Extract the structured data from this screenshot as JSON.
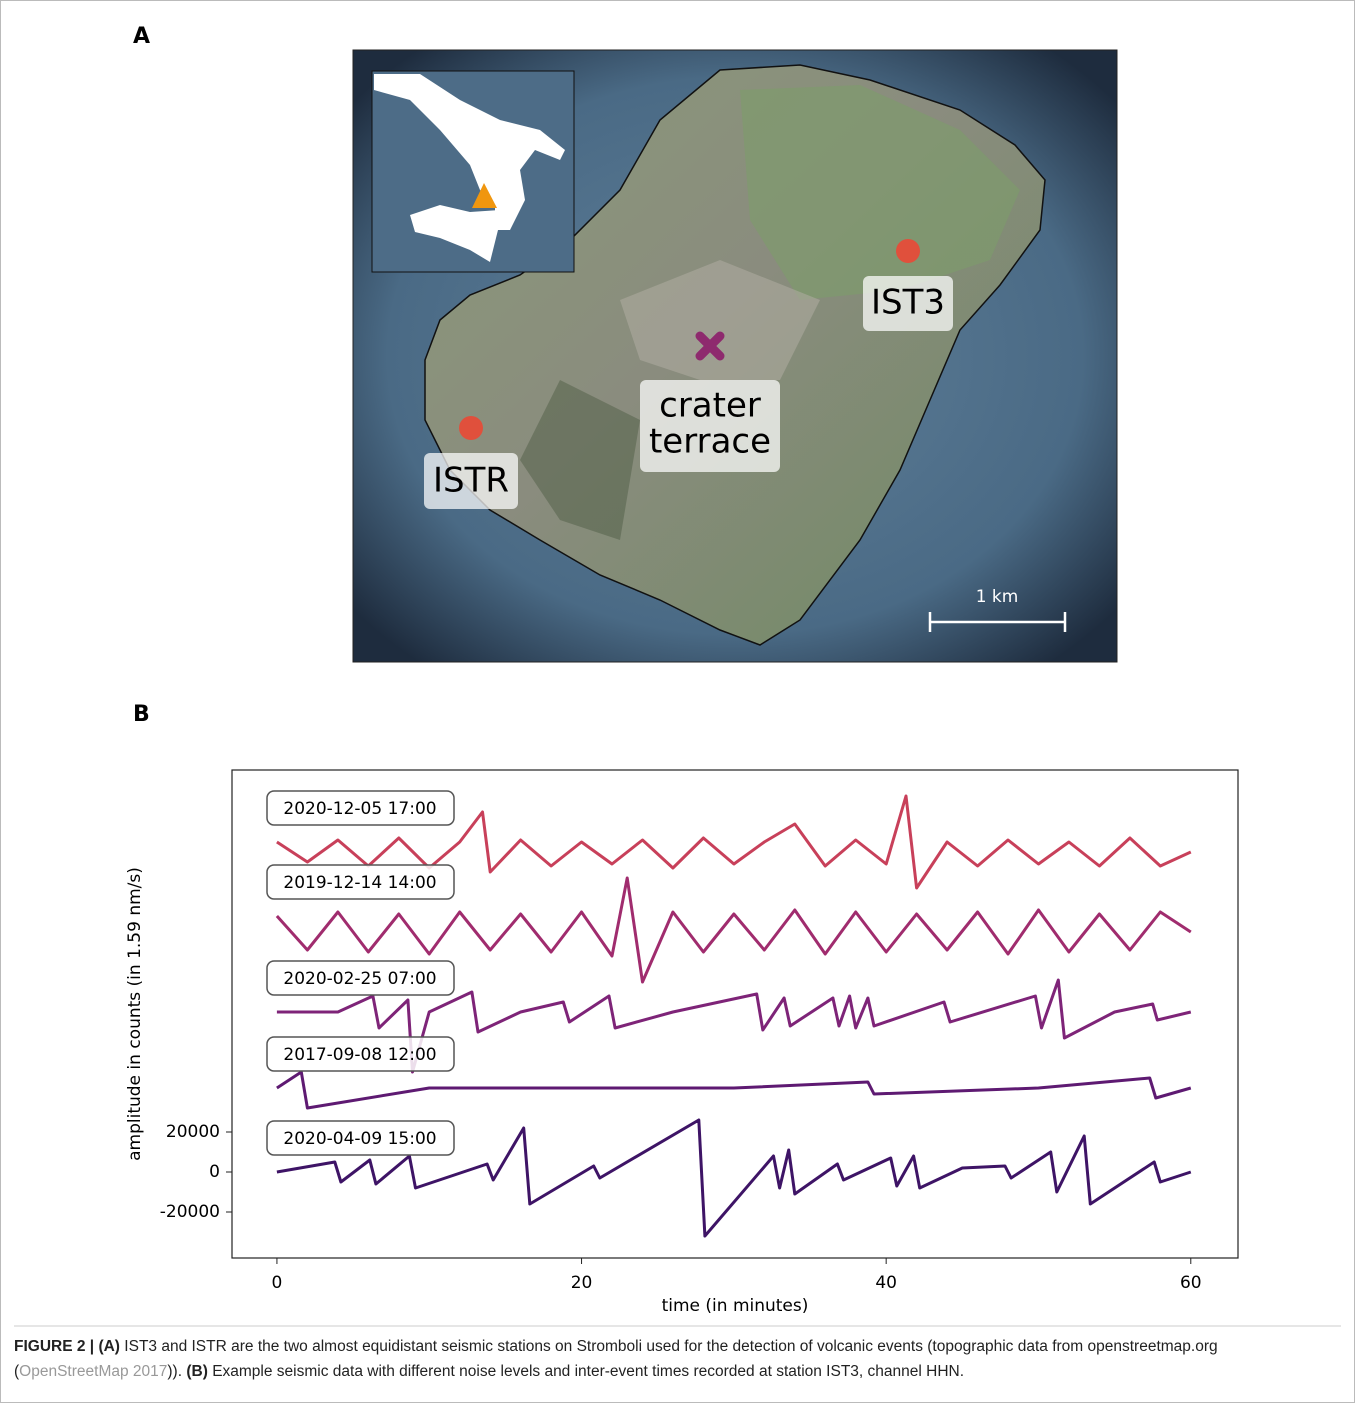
{
  "panel_a": {
    "label": "A",
    "stations": [
      {
        "name": "IST3"
      },
      {
        "name": "ISTR"
      }
    ],
    "crater_lines": [
      "crater",
      "terrace"
    ],
    "scale": "1 km"
  },
  "panel_b": {
    "label": "B"
  },
  "chart_data": {
    "type": "line",
    "xlabel": "time (in minutes)",
    "ylabel": "amplitude in counts (in 1.59 nm/s)",
    "xlim": [
      -2.95,
      63.1
    ],
    "xticks": [
      0,
      20,
      40,
      60
    ],
    "ylim": [
      -43000,
      201000
    ],
    "yticks": [
      -20000,
      0,
      20000
    ],
    "series": [
      {
        "name": "2020-12-05 17:00",
        "color": "#c8405a",
        "x": [
          0,
          2,
          4,
          6,
          8,
          10,
          12,
          13.5,
          14,
          16,
          18,
          20,
          22,
          24,
          26,
          28,
          30,
          32,
          34,
          36,
          38,
          40,
          41.3,
          42,
          44,
          46,
          48,
          50,
          52,
          54,
          56,
          58,
          60
        ],
        "values": [
          165000,
          155000,
          166000,
          153000,
          167000,
          152000,
          165000,
          180000,
          150000,
          166000,
          153000,
          165000,
          154000,
          166000,
          152000,
          167000,
          154000,
          165000,
          174000,
          153000,
          166000,
          154000,
          188000,
          142000,
          165000,
          153000,
          166000,
          154000,
          165000,
          153000,
          167000,
          153000,
          160000
        ]
      },
      {
        "name": "2019-12-14 14:00",
        "color": "#a02c6e",
        "x": [
          0,
          2,
          4,
          6,
          8,
          10,
          12,
          14,
          16,
          18,
          20,
          22,
          23,
          24,
          26,
          28,
          30,
          32,
          34,
          36,
          38,
          40,
          42,
          44,
          46,
          48,
          50,
          52,
          54,
          56,
          58,
          60
        ],
        "values": [
          128000,
          111000,
          130000,
          110000,
          129000,
          109000,
          130000,
          111000,
          129000,
          110000,
          130000,
          108000,
          147000,
          95000,
          130000,
          110000,
          129000,
          111000,
          131000,
          109000,
          130000,
          110000,
          129000,
          111000,
          130000,
          109000,
          131000,
          110000,
          129000,
          111000,
          130000,
          120000
        ]
      },
      {
        "name": "2020-02-25 07:00",
        "color": "#7e2478",
        "x": [
          0,
          4,
          6.3,
          6.7,
          8.6,
          8.9,
          10,
          12.8,
          13.2,
          16,
          18.8,
          19.2,
          21.8,
          22.2,
          26,
          31.5,
          31.9,
          33.3,
          33.7,
          36.5,
          36.9,
          37.6,
          38,
          38.8,
          39.2,
          43.8,
          44.2,
          49.8,
          50.2,
          51.3,
          51.7,
          55,
          57.5,
          57.8,
          60
        ],
        "values": [
          80000,
          80000,
          88000,
          72000,
          86000,
          50000,
          80000,
          90000,
          70000,
          80000,
          85000,
          75000,
          88000,
          72000,
          80000,
          89000,
          71000,
          87000,
          73000,
          87000,
          73000,
          88000,
          72000,
          87000,
          73000,
          85000,
          75000,
          88000,
          72000,
          96000,
          67000,
          80000,
          84000,
          76000,
          80000
        ]
      },
      {
        "name": "2017-09-08 12:00",
        "color": "#5e1a72",
        "x": [
          0,
          1.6,
          2,
          10,
          20,
          30,
          38.8,
          39.2,
          50,
          57.3,
          57.7,
          60
        ],
        "values": [
          42000,
          50000,
          32000,
          42000,
          42000,
          42000,
          45000,
          39000,
          42000,
          47000,
          37000,
          42000
        ]
      },
      {
        "name": "2020-04-09 15:00",
        "color": "#3e1466",
        "x": [
          0,
          3.8,
          4.2,
          6.1,
          6.5,
          8.7,
          9.1,
          13.8,
          14.2,
          16.2,
          16.6,
          20.8,
          21.2,
          27.7,
          28.1,
          32.6,
          33,
          33.6,
          34,
          36.8,
          37.2,
          40.3,
          40.7,
          41.8,
          42.2,
          45,
          47.8,
          48.2,
          50.8,
          51.2,
          53,
          53.4,
          57.6,
          58,
          60
        ],
        "values": [
          0,
          5000,
          -5000,
          6000,
          -6000,
          8000,
          -8000,
          4000,
          -4000,
          22000,
          -16000,
          3000,
          -3000,
          26000,
          -32000,
          8000,
          -8000,
          11000,
          -11000,
          4000,
          -4000,
          7000,
          -7000,
          8000,
          -8000,
          2000,
          3000,
          -3000,
          10000,
          -10000,
          18000,
          -16000,
          5000,
          -5000,
          0
        ]
      }
    ]
  },
  "caption": {
    "label": "FIGURE 2 |",
    "a_label": "(A)",
    "a_text": "IST3 and ISTR are the two almost equidistant seismic stations on Stromboli used for the detection of volcanic events (topographic data from openstreetmap.org (",
    "a_ref": "OpenStreetMap 2017",
    "a_end": ")).",
    "b_label": "(B)",
    "b_text": "Example seismic data with different noise levels and inter-event times recorded at station IST3, channel HHN."
  }
}
